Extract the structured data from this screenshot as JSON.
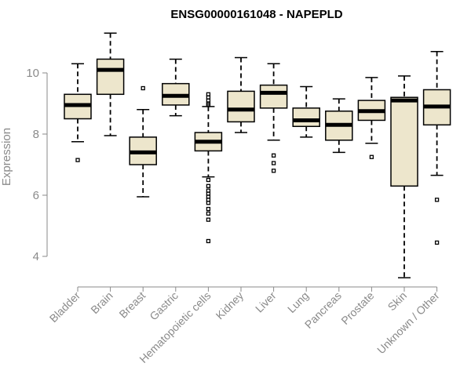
{
  "chart_data": {
    "type": "boxplot",
    "title": "ENSG00000161048 - NAPEPLD",
    "xlabel": "",
    "ylabel": "Expression",
    "ylim": [
      3.0,
      11.5
    ],
    "yticks": [
      4,
      6,
      8,
      10
    ],
    "box_fill": "#ede6cc",
    "categories": [
      "Bladder",
      "Brain",
      "Breast",
      "Gastric",
      "Hematopoietic cells",
      "Kidney",
      "Liver",
      "Lung",
      "Pancreas",
      "Prostate",
      "Skin",
      "Unknown / Other"
    ],
    "boxes": [
      {
        "min": 7.75,
        "q1": 8.5,
        "median": 8.95,
        "q3": 9.3,
        "max": 10.3,
        "outliers": [
          7.15
        ]
      },
      {
        "min": 7.95,
        "q1": 9.3,
        "median": 10.1,
        "q3": 10.45,
        "max": 11.3,
        "outliers": []
      },
      {
        "min": 5.95,
        "q1": 7.0,
        "median": 7.4,
        "q3": 7.9,
        "max": 8.8,
        "outliers": [
          9.5
        ]
      },
      {
        "min": 8.6,
        "q1": 8.95,
        "median": 9.25,
        "q3": 9.65,
        "max": 10.45,
        "outliers": []
      },
      {
        "min": 6.6,
        "q1": 7.45,
        "median": 7.75,
        "q3": 8.05,
        "max": 8.9,
        "outliers": [
          9.3,
          9.2,
          9.1,
          9.0,
          8.95,
          6.5,
          6.3,
          6.15,
          6.05,
          5.95,
          5.85,
          5.75,
          5.55,
          5.4,
          5.2,
          4.5
        ]
      },
      {
        "min": 8.05,
        "q1": 8.4,
        "median": 8.8,
        "q3": 9.4,
        "max": 10.5,
        "outliers": []
      },
      {
        "min": 7.8,
        "q1": 8.85,
        "median": 9.35,
        "q3": 9.6,
        "max": 10.3,
        "outliers": [
          7.3,
          7.05,
          6.8
        ]
      },
      {
        "min": 7.9,
        "q1": 8.25,
        "median": 8.45,
        "q3": 8.85,
        "max": 9.55,
        "outliers": []
      },
      {
        "min": 7.4,
        "q1": 7.8,
        "median": 8.3,
        "q3": 8.75,
        "max": 9.15,
        "outliers": []
      },
      {
        "min": 7.7,
        "q1": 8.45,
        "median": 8.75,
        "q3": 9.1,
        "max": 9.85,
        "outliers": [
          7.25
        ]
      },
      {
        "min": 3.3,
        "q1": 6.3,
        "median": 9.1,
        "q3": 9.2,
        "max": 9.9,
        "outliers": []
      },
      {
        "min": 6.65,
        "q1": 8.3,
        "median": 8.9,
        "q3": 9.45,
        "max": 10.7,
        "outliers": [
          5.85,
          4.45
        ]
      }
    ]
  }
}
